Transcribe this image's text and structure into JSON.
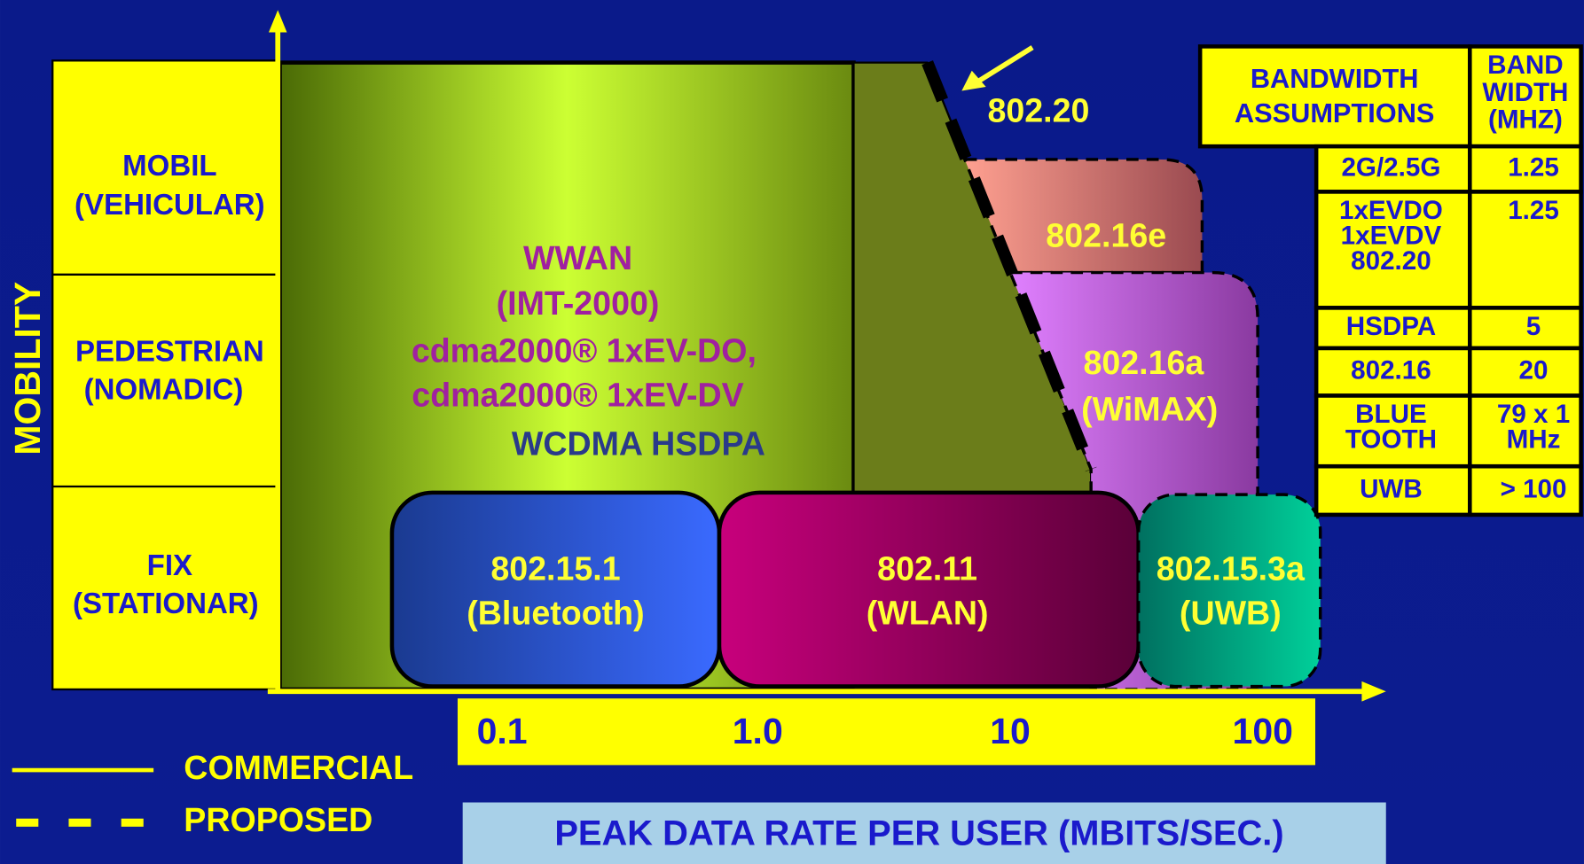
{
  "y_axis_label": "MOBILITY",
  "mobility_rows": [
    {
      "lines": [
        "MOBIL",
        "(VEHICULAR)"
      ]
    },
    {
      "lines": [
        "PEDESTRIAN",
        "(NOMADIC)"
      ]
    },
    {
      "lines": [
        "FIX",
        "(STATIONAR)"
      ]
    }
  ],
  "wwan": {
    "lines": [
      "WWAN",
      "(IMT-2000)",
      "cdma2000® 1xEV-DO,",
      "cdma2000® 1xEV-DV"
    ],
    "sub": "WCDMA HSDPA"
  },
  "regions": [
    {
      "lines": [
        "802.20"
      ]
    },
    {
      "lines": [
        "802.16e"
      ]
    },
    {
      "lines": [
        "802.16a",
        "(WiMAX)"
      ]
    },
    {
      "lines": [
        "802.15.1",
        "(Bluetooth)"
      ]
    },
    {
      "lines": [
        "802.11",
        "(WLAN)"
      ]
    },
    {
      "lines": [
        "802.15.3a",
        "(UWB)"
      ]
    }
  ],
  "x_ticks": [
    "0.1",
    "1.0",
    "10",
    "100"
  ],
  "x_axis_label": "PEAK DATA RATE PER USER (MBITS/SEC.)",
  "legend": [
    "COMMERCIAL",
    "PROPOSED"
  ],
  "table": {
    "header": [
      [
        "BANDWIDTH",
        "ASSUMPTIONS"
      ],
      [
        "BAND",
        "WIDTH",
        "(MHZ)"
      ]
    ],
    "rows": [
      [
        [
          "2G/2.5G"
        ],
        [
          "1.25"
        ]
      ],
      [
        [
          "1xEVDO",
          "1xEVDV",
          "802.20"
        ],
        [
          "1.25"
        ]
      ],
      [
        [
          "HSDPA"
        ],
        [
          "5"
        ]
      ],
      [
        [
          "802.16"
        ],
        [
          "20"
        ]
      ],
      [
        [
          "BLUE",
          "TOOTH"
        ],
        [
          "79 x 1",
          "MHz"
        ]
      ],
      [
        [
          "UWB"
        ],
        [
          "> 100"
        ]
      ]
    ]
  }
}
